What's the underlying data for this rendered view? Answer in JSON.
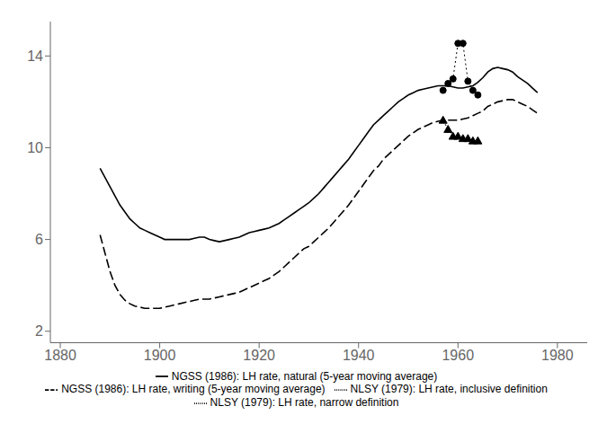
{
  "chart_data": {
    "type": "line",
    "xlim": [
      1878,
      1986
    ],
    "ylim": [
      1.5,
      15.5
    ],
    "xticks": [
      1880,
      1900,
      1920,
      1940,
      1960,
      1980
    ],
    "yticks": [
      2,
      6,
      10,
      14
    ],
    "grid": false,
    "legend": "bottom",
    "series": [
      {
        "name": "NGSS (1986): LH rate, natural (5-year moving average)",
        "color": "#000000",
        "line_style": "solid",
        "marker": "none",
        "x": [
          1888,
          1889,
          1890,
          1891,
          1892,
          1893,
          1894,
          1895,
          1896,
          1897,
          1898,
          1899,
          1900,
          1901,
          1902,
          1903,
          1904,
          1905,
          1906,
          1907,
          1908,
          1909,
          1910,
          1911,
          1912,
          1913,
          1914,
          1915,
          1916,
          1917,
          1918,
          1919,
          1920,
          1921,
          1922,
          1923,
          1924,
          1925,
          1926,
          1927,
          1928,
          1929,
          1930,
          1931,
          1932,
          1933,
          1934,
          1935,
          1936,
          1937,
          1938,
          1939,
          1940,
          1941,
          1942,
          1943,
          1944,
          1945,
          1946,
          1947,
          1948,
          1949,
          1950,
          1951,
          1952,
          1953,
          1954,
          1955,
          1956,
          1957,
          1958,
          1959,
          1960,
          1961,
          1962,
          1963,
          1964,
          1965,
          1966,
          1967,
          1968,
          1969,
          1970,
          1971,
          1972,
          1973,
          1974,
          1975,
          1976
        ],
        "values": [
          9.1,
          8.7,
          8.3,
          7.9,
          7.5,
          7.2,
          6.9,
          6.7,
          6.5,
          6.4,
          6.3,
          6.2,
          6.1,
          6.0,
          6.0,
          6.0,
          6.0,
          6.0,
          6.0,
          6.05,
          6.1,
          6.1,
          6.0,
          5.95,
          5.9,
          5.95,
          6.0,
          6.05,
          6.1,
          6.2,
          6.3,
          6.35,
          6.4,
          6.45,
          6.5,
          6.6,
          6.7,
          6.85,
          7.0,
          7.15,
          7.3,
          7.45,
          7.6,
          7.8,
          8.0,
          8.25,
          8.5,
          8.75,
          9.0,
          9.25,
          9.5,
          9.8,
          10.1,
          10.4,
          10.7,
          11.0,
          11.2,
          11.4,
          11.6,
          11.8,
          12.0,
          12.15,
          12.3,
          12.4,
          12.5,
          12.55,
          12.6,
          12.65,
          12.7,
          12.7,
          12.7,
          12.65,
          12.6,
          12.6,
          12.65,
          12.7,
          12.85,
          13.05,
          13.3,
          13.45,
          13.5,
          13.45,
          13.4,
          13.3,
          13.1,
          12.95,
          12.8,
          12.6,
          12.4
        ]
      },
      {
        "name": "NGSS (1986): LH rate, writing (5-year moving average)",
        "color": "#000000",
        "line_style": "dashed",
        "marker": "none",
        "x": [
          1888,
          1889,
          1890,
          1891,
          1892,
          1893,
          1894,
          1895,
          1896,
          1897,
          1898,
          1899,
          1900,
          1901,
          1902,
          1903,
          1904,
          1905,
          1906,
          1907,
          1908,
          1909,
          1910,
          1911,
          1912,
          1913,
          1914,
          1915,
          1916,
          1917,
          1918,
          1919,
          1920,
          1921,
          1922,
          1923,
          1924,
          1925,
          1926,
          1927,
          1928,
          1929,
          1930,
          1931,
          1932,
          1933,
          1934,
          1935,
          1936,
          1937,
          1938,
          1939,
          1940,
          1941,
          1942,
          1943,
          1944,
          1945,
          1946,
          1947,
          1948,
          1949,
          1950,
          1951,
          1952,
          1953,
          1954,
          1955,
          1956,
          1957,
          1958,
          1959,
          1960,
          1961,
          1962,
          1963,
          1964,
          1965,
          1966,
          1967,
          1968,
          1969,
          1970,
          1971,
          1972,
          1973,
          1974,
          1975,
          1976
        ],
        "values": [
          6.2,
          5.4,
          4.6,
          4.0,
          3.6,
          3.35,
          3.2,
          3.1,
          3.05,
          3.0,
          3.0,
          3.0,
          3.0,
          3.05,
          3.1,
          3.15,
          3.2,
          3.25,
          3.3,
          3.35,
          3.4,
          3.4,
          3.4,
          3.45,
          3.5,
          3.55,
          3.6,
          3.65,
          3.7,
          3.8,
          3.9,
          4.0,
          4.1,
          4.2,
          4.3,
          4.45,
          4.6,
          4.8,
          5.0,
          5.2,
          5.4,
          5.6,
          5.7,
          5.9,
          6.1,
          6.3,
          6.5,
          6.75,
          7.0,
          7.25,
          7.5,
          7.8,
          8.1,
          8.4,
          8.7,
          9.0,
          9.2,
          9.5,
          9.7,
          9.9,
          10.1,
          10.3,
          10.5,
          10.65,
          10.8,
          10.9,
          11.0,
          11.1,
          11.15,
          11.2,
          11.2,
          11.2,
          11.2,
          11.25,
          11.3,
          11.4,
          11.5,
          11.6,
          11.8,
          11.9,
          12.0,
          12.05,
          12.1,
          12.1,
          12.0,
          11.9,
          11.8,
          11.65,
          11.5
        ]
      },
      {
        "name": "NLSY (1979): LH rate, narrow definition",
        "color": "#000000",
        "line_style": "dotted",
        "marker": "triangle",
        "x": [
          1957,
          1958,
          1959,
          1960,
          1961,
          1962,
          1963,
          1964
        ],
        "values": [
          11.2,
          10.8,
          10.5,
          10.5,
          10.4,
          10.4,
          10.3,
          10.3
        ]
      },
      {
        "name": "NLSY (1979): LH rate, inclusive definition",
        "color": "#000000",
        "line_style": "dotted",
        "marker": "circle",
        "x": [
          1957,
          1958,
          1959,
          1960,
          1961,
          1962,
          1963,
          1964
        ],
        "values": [
          12.5,
          12.8,
          13.0,
          14.55,
          14.55,
          12.9,
          12.5,
          12.3
        ]
      }
    ]
  }
}
